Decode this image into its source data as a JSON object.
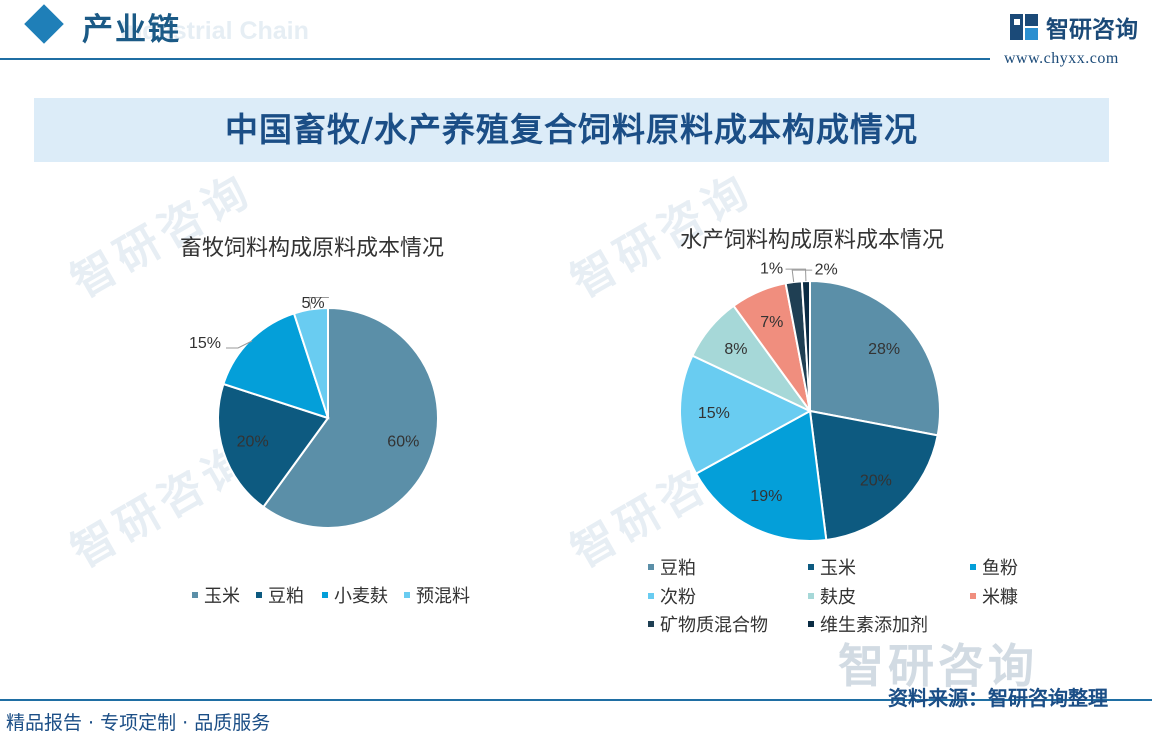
{
  "header": {
    "section_title": "产业链",
    "section_title_en": "Industrial Chain",
    "logo_text": "智研咨询",
    "site_url": "www.chyxx.com"
  },
  "banner": {
    "title": "中国畜牧/水产养殖复合饲料原料成本构成情况"
  },
  "watermark": {
    "text": "智研咨询"
  },
  "footer": {
    "left": "精品报告 · 专项定制 · 品质服务",
    "source": "资料来源：智研咨询整理"
  },
  "chart_data": [
    {
      "type": "pie",
      "title": "畜牧饲料构成原料成本情况",
      "legend_position": "bottom",
      "slices": [
        {
          "label": "玉米",
          "value": 60,
          "value_label": "60%",
          "color": "#5b8fa8"
        },
        {
          "label": "豆粕",
          "value": 20,
          "value_label": "20%",
          "color": "#0d5a80"
        },
        {
          "label": "小麦麸",
          "value": 15,
          "value_label": "15%",
          "color": "#049fd9"
        },
        {
          "label": "预混料",
          "value": 5,
          "value_label": "5%",
          "color": "#69ccf1"
        }
      ]
    },
    {
      "type": "pie",
      "title": "水产饲料构成原料成本情况",
      "legend_position": "bottom",
      "slices": [
        {
          "label": "豆粕",
          "value": 28,
          "value_label": "28%",
          "color": "#5b8fa8"
        },
        {
          "label": "玉米",
          "value": 20,
          "value_label": "20%",
          "color": "#0d5a80"
        },
        {
          "label": "鱼粉",
          "value": 19,
          "value_label": "19%",
          "color": "#049fd9"
        },
        {
          "label": "次粉",
          "value": 15,
          "value_label": "15%",
          "color": "#69ccf1"
        },
        {
          "label": "麸皮",
          "value": 8,
          "value_label": "8%",
          "color": "#a6d8d8"
        },
        {
          "label": "米糠",
          "value": 7,
          "value_label": "7%",
          "color": "#f08e7e"
        },
        {
          "label": "矿物质混合物",
          "value": 2,
          "value_label": "2%",
          "color": "#1f3f53"
        },
        {
          "label": "维生素添加剂",
          "value": 1,
          "value_label": "1%",
          "color": "#0b2c44"
        }
      ]
    }
  ]
}
